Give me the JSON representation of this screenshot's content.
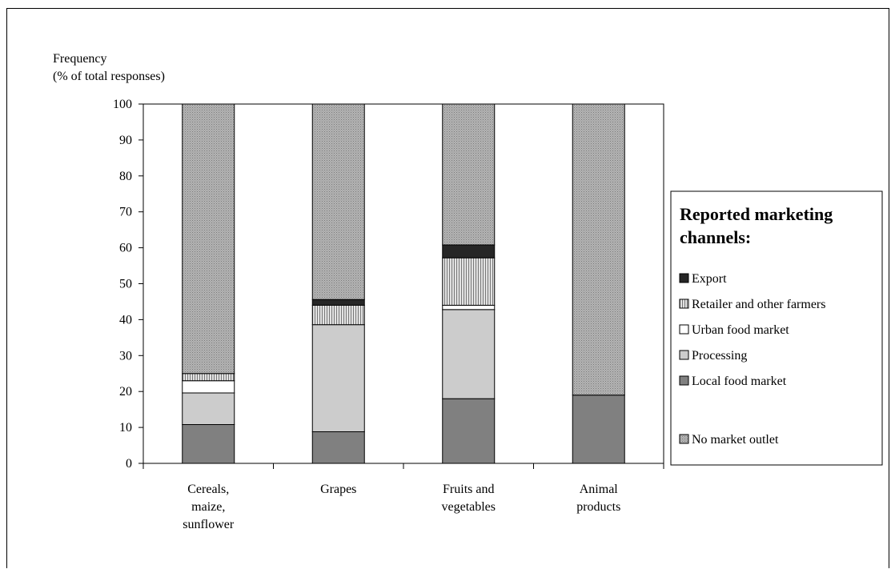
{
  "chart_data": {
    "type": "bar",
    "stacked": true,
    "ylabel": [
      "Frequency",
      "(% of total responses)"
    ],
    "ylim": [
      0,
      100
    ],
    "yticks": [
      0,
      10,
      20,
      30,
      40,
      50,
      60,
      70,
      80,
      90,
      100
    ],
    "categories": [
      [
        "Cereals,",
        "maize,",
        "sunflower"
      ],
      [
        "Grapes"
      ],
      [
        "Fruits and",
        "vegetables"
      ],
      [
        "Animal",
        "products"
      ]
    ],
    "series": [
      {
        "name": "Local food market",
        "values": [
          10.8,
          8.8,
          18.0,
          19.0
        ],
        "color": "#808080",
        "pattern": "solid"
      },
      {
        "name": "Processing",
        "values": [
          8.8,
          29.8,
          24.8,
          0
        ],
        "color": "#cccccc",
        "pattern": "solid"
      },
      {
        "name": "Urban food market",
        "values": [
          3.4,
          0,
          1.2,
          0
        ],
        "color": "#ffffff",
        "pattern": "solid"
      },
      {
        "name": "Retailer and other farmers",
        "values": [
          2.0,
          5.4,
          13.2,
          0
        ],
        "color": "#d0d0d0",
        "pattern": "vlines"
      },
      {
        "name": "Export",
        "values": [
          0,
          1.6,
          3.6,
          0
        ],
        "color": "#262626",
        "pattern": "solid"
      },
      {
        "name": "No market outlet",
        "values": [
          75.0,
          54.4,
          39.2,
          81.0
        ],
        "color": "#a6a6a6",
        "pattern": "crosshatch"
      }
    ],
    "legend": {
      "title": [
        "Reported marketing",
        "channels:"
      ],
      "position": "right",
      "order": [
        4,
        3,
        2,
        1,
        0,
        5
      ]
    },
    "grid": false
  }
}
